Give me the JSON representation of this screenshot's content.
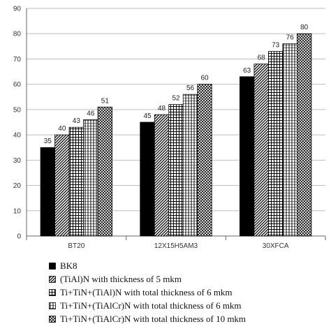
{
  "chart_data": {
    "type": "bar",
    "title": "",
    "xlabel": "",
    "ylabel": "",
    "ylim": [
      0,
      90
    ],
    "yticks": [
      "0",
      "10",
      "20",
      "30",
      "40",
      "50",
      "60",
      "70",
      "80",
      "90"
    ],
    "grid": true,
    "legend_position": "bottom",
    "categories": [
      "BT20",
      "12X15H5AM3",
      "30XFCA"
    ],
    "series": [
      {
        "name": "BK8",
        "values": [
          35,
          45,
          63
        ],
        "pattern": "solid",
        "color": "#000000"
      },
      {
        "name": "(TiAl)N with thickness of 5 mkm",
        "values": [
          40,
          48,
          68
        ],
        "pattern": "diagonal",
        "color": "#000000"
      },
      {
        "name": "Ti+TiN+(TiAl)N with total thickness of 6 mkm",
        "values": [
          43,
          52,
          73
        ],
        "pattern": "grid",
        "color": "#000000"
      },
      {
        "name": "Ti+TiN+(TiAlCr)N with total thickness of 6 mkm",
        "values": [
          46,
          56,
          76
        ],
        "pattern": "vertical",
        "color": "#000000"
      },
      {
        "name": "Ti+TiN+(TiAlCr)N with total thickness of 10 mkm",
        "values": [
          51,
          60,
          80
        ],
        "pattern": "checker",
        "color": "#000000"
      }
    ]
  }
}
